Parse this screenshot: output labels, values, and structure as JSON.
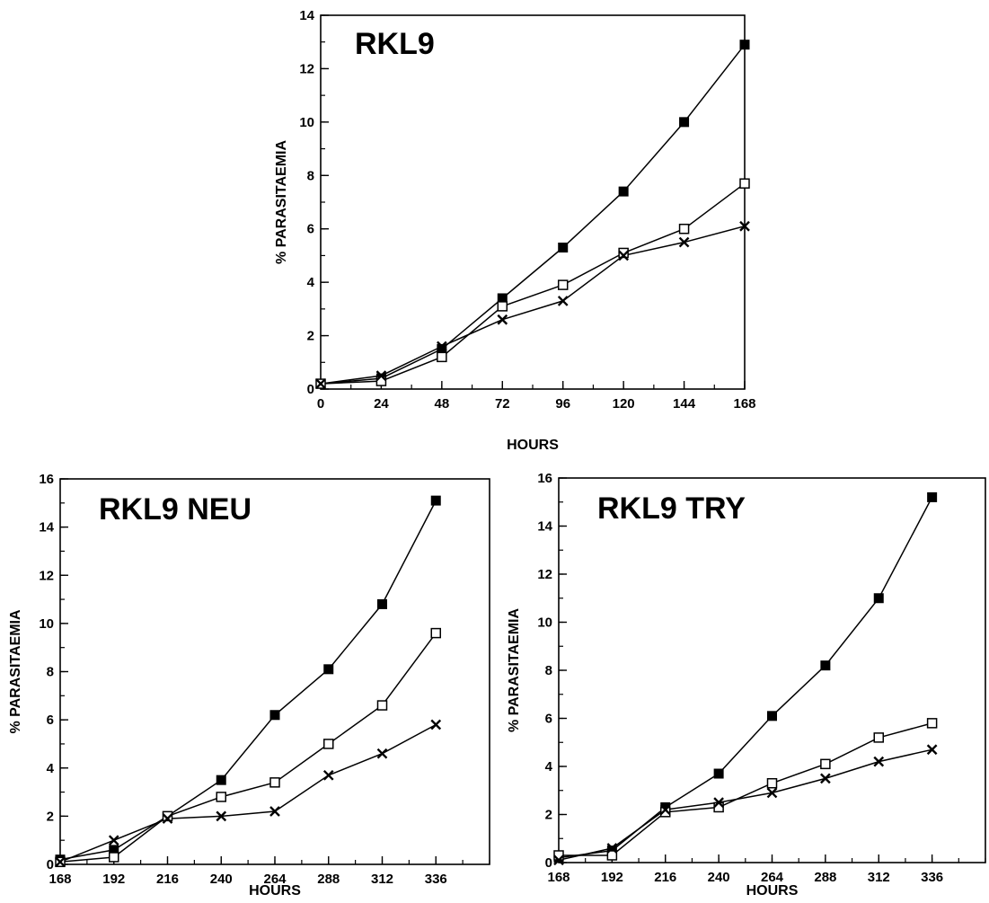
{
  "chart_data": [
    {
      "type": "line",
      "title": "RKL9",
      "xlabel": "HOURS",
      "ylabel": "% PARASITAEMIA",
      "xlim": [
        0,
        168
      ],
      "ylim": [
        0,
        14
      ],
      "xticks": [
        0,
        24,
        48,
        72,
        96,
        120,
        144,
        168
      ],
      "yticks": [
        0,
        2,
        4,
        6,
        8,
        10,
        12,
        14
      ],
      "grid": false,
      "series": [
        {
          "marker": "filled-square",
          "x": [
            0,
            24,
            48,
            72,
            96,
            120,
            144,
            168
          ],
          "y": [
            0.2,
            0.4,
            1.5,
            3.4,
            5.3,
            7.4,
            10.0,
            12.9
          ]
        },
        {
          "marker": "open-square",
          "x": [
            0,
            24,
            48,
            72,
            96,
            120,
            144,
            168
          ],
          "y": [
            0.2,
            0.3,
            1.2,
            3.1,
            3.9,
            5.1,
            6.0,
            7.7
          ]
        },
        {
          "marker": "cross",
          "x": [
            0,
            24,
            48,
            72,
            96,
            120,
            144,
            168
          ],
          "y": [
            0.2,
            0.5,
            1.6,
            2.6,
            3.3,
            5.0,
            5.5,
            6.1
          ]
        }
      ]
    },
    {
      "type": "line",
      "title": "RKL9 NEU",
      "xlabel": "HOURS",
      "ylabel": "% PARASITAEMIA",
      "xlim": [
        168,
        360
      ],
      "ylim": [
        0,
        16
      ],
      "xticks": [
        168,
        192,
        216,
        240,
        264,
        288,
        312,
        336
      ],
      "yticks": [
        0,
        2,
        4,
        6,
        8,
        10,
        12,
        14,
        16
      ],
      "grid": false,
      "series": [
        {
          "marker": "filled-square",
          "x": [
            168,
            192,
            216,
            240,
            264,
            288,
            312,
            336
          ],
          "y": [
            0.2,
            0.6,
            2.0,
            3.5,
            6.2,
            8.1,
            10.8,
            15.1
          ]
        },
        {
          "marker": "open-square",
          "x": [
            168,
            192,
            216,
            240,
            264,
            288,
            312,
            336
          ],
          "y": [
            0.1,
            0.3,
            2.0,
            2.8,
            3.4,
            5.0,
            6.6,
            9.6
          ]
        },
        {
          "marker": "cross",
          "x": [
            168,
            192,
            216,
            240,
            264,
            288,
            312,
            336
          ],
          "y": [
            0.1,
            1.0,
            1.9,
            2.0,
            2.2,
            3.7,
            4.6,
            5.8
          ]
        }
      ]
    },
    {
      "type": "line",
      "title": "RKL9 TRY",
      "xlabel": "HOURS",
      "ylabel": "% PARASITAEMIA",
      "xlim": [
        168,
        360
      ],
      "ylim": [
        0,
        16
      ],
      "xticks": [
        168,
        192,
        216,
        240,
        264,
        288,
        312,
        336
      ],
      "yticks": [
        0,
        2,
        4,
        6,
        8,
        10,
        12,
        14,
        16
      ],
      "grid": false,
      "series": [
        {
          "marker": "filled-square",
          "x": [
            168,
            192,
            216,
            240,
            264,
            288,
            312,
            336
          ],
          "y": [
            0.2,
            0.5,
            2.3,
            3.7,
            6.1,
            8.2,
            11.0,
            15.2
          ]
        },
        {
          "marker": "open-square",
          "x": [
            168,
            192,
            216,
            240,
            264,
            288,
            312,
            336
          ],
          "y": [
            0.3,
            0.3,
            2.1,
            2.3,
            3.3,
            4.1,
            5.2,
            5.8
          ]
        },
        {
          "marker": "cross",
          "x": [
            168,
            192,
            216,
            240,
            264,
            288,
            312,
            336
          ],
          "y": [
            0.1,
            0.6,
            2.2,
            2.5,
            2.9,
            3.5,
            4.2,
            4.7
          ]
        }
      ]
    }
  ]
}
